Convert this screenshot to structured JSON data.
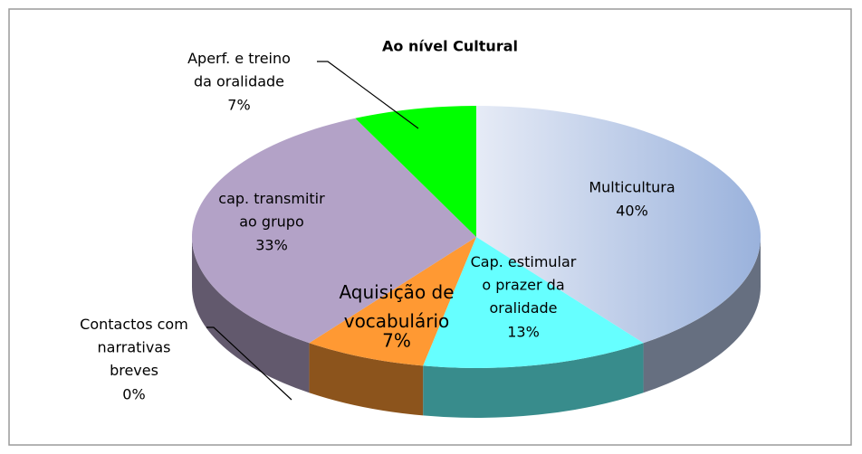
{
  "chart_data": {
    "type": "pie3d",
    "title": "Ao nível Cultural",
    "categories": [
      "Multicultura",
      "Cap. estimular\no prazer da\noralidade",
      "Aquisição de\nvocabulário",
      "Contactos com\nnarrativas\nbreves",
      "cap. transmitir\nao grupo",
      "Aperf. e treino\nda oralidade"
    ],
    "values": [
      40,
      13,
      7,
      0,
      33,
      7
    ],
    "value_labels": [
      "40%",
      "13%",
      "7%",
      "0%",
      "33%",
      "7%"
    ],
    "colors": [
      "#b9c9e8",
      "#66ffff",
      "#ff9933",
      "#9bbb59",
      "#b3a2c7",
      "#00ff00"
    ]
  }
}
